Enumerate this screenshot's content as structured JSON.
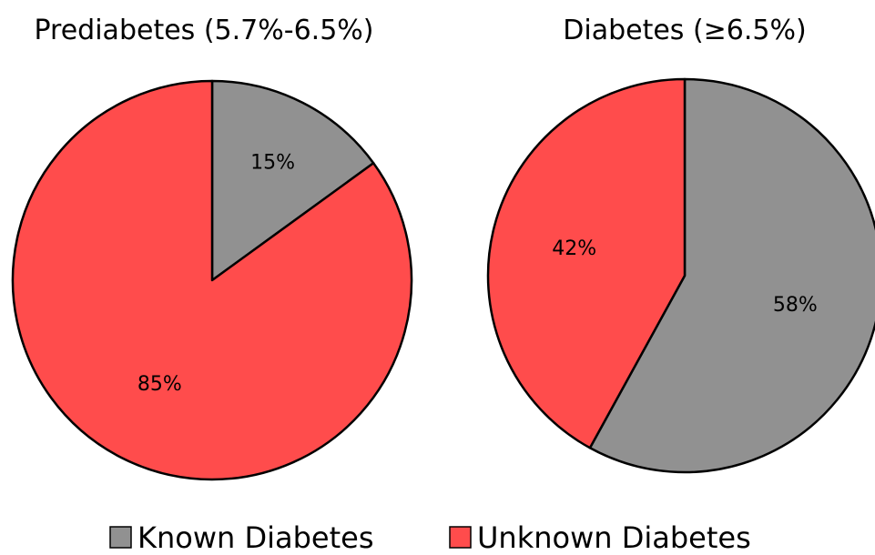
{
  "chart_data": [
    {
      "type": "pie",
      "title": "Prediabetes (5.7%-6.5%)",
      "slices": [
        {
          "category": "Known Diabetes",
          "value": 15,
          "label": "15%"
        },
        {
          "category": "Unknown Diabetes",
          "value": 85,
          "label": "85%"
        }
      ],
      "start": "12 o'clock",
      "direction": "clockwise"
    },
    {
      "type": "pie",
      "title": "Diabetes (≥6.5%)",
      "slices": [
        {
          "category": "Known Diabetes",
          "value": 58,
          "label": "58%"
        },
        {
          "category": "Unknown Diabetes",
          "value": 42,
          "label": "42%"
        }
      ],
      "start": "12 o'clock",
      "direction": "clockwise"
    }
  ],
  "legend": {
    "placement": "bottom",
    "items": [
      {
        "label": "Known Diabetes",
        "color": "#919191"
      },
      {
        "label": "Unknown Diabetes",
        "color": "#ff4c4c"
      }
    ]
  },
  "colors": {
    "Known Diabetes": "#919191",
    "Unknown Diabetes": "#ff4c4c",
    "outline": "#000000"
  }
}
